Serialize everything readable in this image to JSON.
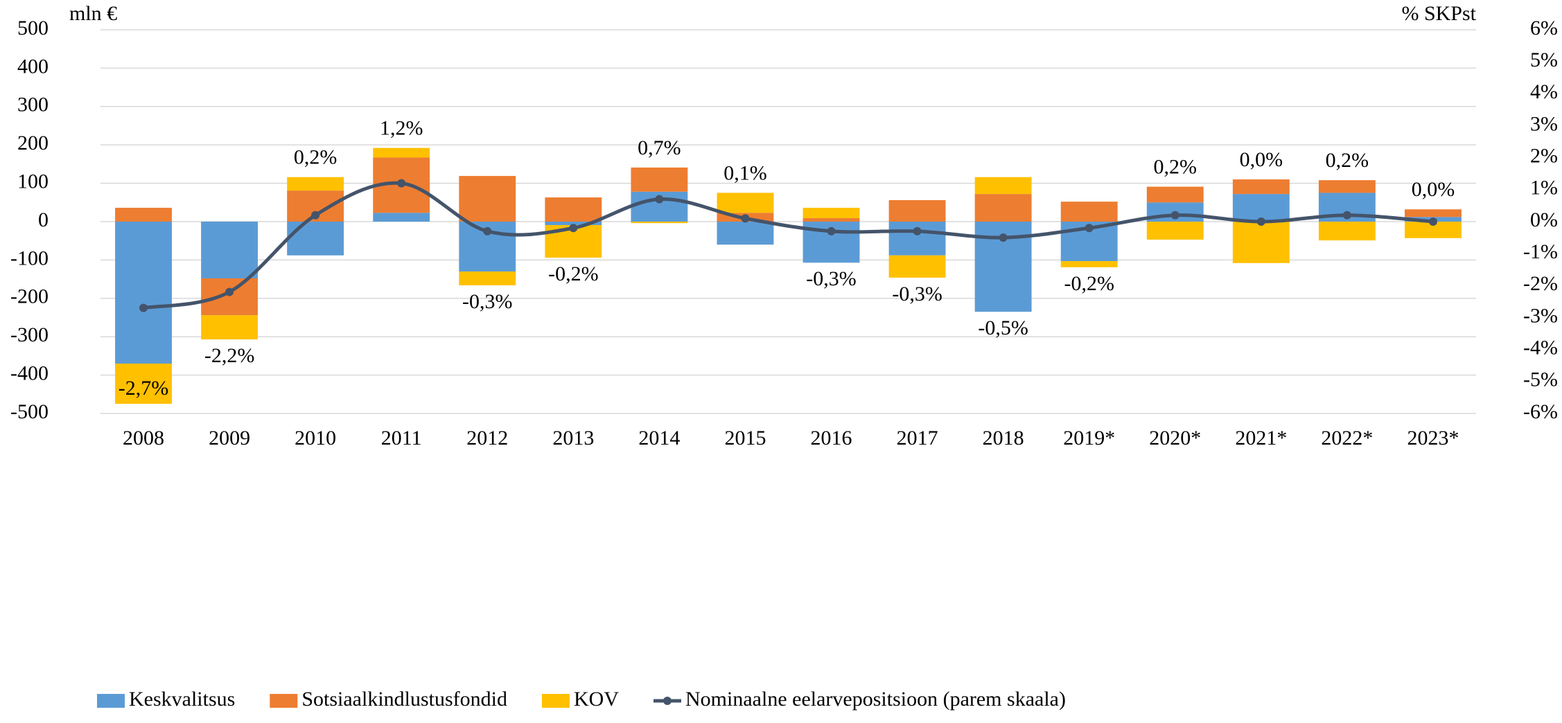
{
  "chart_data": {
    "type": "bar",
    "stacked": true,
    "y_label": "mln €",
    "y2_label": "% SKPst",
    "categories": [
      "2008",
      "2009",
      "2010",
      "2011",
      "2012",
      "2013",
      "2014",
      "2015",
      "2016",
      "2017",
      "2018",
      "2019*",
      "2020*",
      "2021*",
      "2022*",
      "2023*"
    ],
    "series": [
      {
        "name": "Keskvalitsus",
        "color": "#5b9bd5",
        "values": [
          -370,
          -148,
          -88,
          23,
          -130,
          -9,
          78,
          -60,
          -107,
          -88,
          -235,
          -103,
          50,
          72,
          75,
          12
        ]
      },
      {
        "name": "Sotsiaalkindlustusfondid",
        "color": "#ed7d31",
        "values": [
          36,
          -96,
          81,
          144,
          119,
          63,
          63,
          23,
          9,
          56,
          72,
          52,
          41,
          38,
          33,
          20
        ]
      },
      {
        "name": "KOV",
        "color": "#ffc000",
        "values": [
          -105,
          -63,
          35,
          25,
          -36,
          -85,
          -4,
          52,
          27,
          -58,
          44,
          -16,
          -47,
          -108,
          -49,
          -43
        ]
      },
      {
        "name": "Nominaalne eelarvepositsioon (parem skaala)",
        "type": "line",
        "axis": "y2",
        "color": "#44546a",
        "values": [
          -2.7,
          -2.2,
          0.2,
          1.2,
          -0.3,
          -0.2,
          0.7,
          0.1,
          -0.3,
          -0.3,
          -0.5,
          -0.2,
          0.2,
          0.0,
          0.2,
          0.0
        ],
        "value_labels": [
          "-2,7%",
          "-2,2%",
          "0,2%",
          "1,2%",
          "-0,3%",
          "-0,2%",
          "0,7%",
          "0,1%",
          "-0,3%",
          "-0,3%",
          "-0,5%",
          "-0,2%",
          "0,2%",
          "0,0%",
          "0,2%",
          "0,0%"
        ]
      }
    ],
    "ylim": [
      -500,
      500
    ],
    "yticks": [
      -500,
      -400,
      -300,
      -200,
      -100,
      0,
      100,
      200,
      300,
      400,
      500
    ],
    "y2lim": [
      -6,
      6
    ],
    "y2ticks": [
      {
        "value": -6,
        "label": "-6%"
      },
      {
        "value": -5,
        "label": "-5%"
      },
      {
        "value": -4,
        "label": "-4%"
      },
      {
        "value": -3,
        "label": "-3%"
      },
      {
        "value": -2,
        "label": "-2%"
      },
      {
        "value": -1,
        "label": "-1%"
      },
      {
        "value": 0,
        "label": "0%"
      },
      {
        "value": 1,
        "label": "1%"
      },
      {
        "value": 2,
        "label": "2%"
      },
      {
        "value": 3,
        "label": "3%"
      },
      {
        "value": 4,
        "label": "4%"
      },
      {
        "value": 5,
        "label": "5%"
      },
      {
        "value": 6,
        "label": "6%"
      }
    ],
    "grid": true,
    "legend": "bottom"
  }
}
